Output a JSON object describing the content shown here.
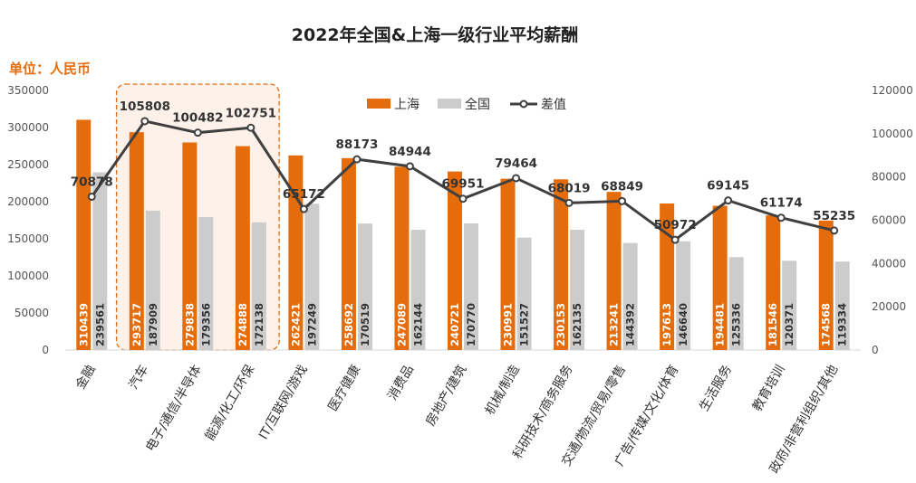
{
  "chart_data": {
    "type": "bar",
    "title": "2022年全国&上海一级行业平均薪酬",
    "unit_label": "单位：人民币",
    "categories": [
      "金融",
      "汽车",
      "电子/通信/半导体",
      "能源/化工/环保",
      "IT/互联网/游戏",
      "医疗健康",
      "消费品",
      "房地产/建筑",
      "机械/制造",
      "科研技术/商务服务",
      "交通/物流/贸易/零售",
      "广告/传媒/文化/体育",
      "生活服务",
      "教育培训",
      "政府/非营利组织/其他"
    ],
    "series": [
      {
        "name": "上海",
        "type": "bar",
        "axis": "left",
        "color": "#e46c0a",
        "values": [
          310439,
          293717,
          279838,
          274888,
          262421,
          258692,
          247089,
          240721,
          230991,
          230153,
          213241,
          197613,
          194481,
          181546,
          174568
        ],
        "labels": [
          "310439",
          "293717",
          "279838",
          "274888",
          "262421",
          "258692",
          "247089",
          "240721",
          "230991",
          "230153",
          "213241",
          "197613",
          "194481",
          "181546",
          "174568"
        ]
      },
      {
        "name": "全国",
        "type": "bar",
        "axis": "left",
        "color": "#cccccc",
        "values": [
          239561,
          187909,
          179356,
          172138,
          197249,
          170519,
          162144,
          170770,
          151527,
          162135,
          144392,
          146640,
          125336,
          120371,
          119334
        ],
        "labels": [
          "239561",
          "187909",
          "179356",
          "172138",
          "197249",
          "170519",
          "162144",
          "170770",
          "151527",
          "162135",
          "144392",
          "146640",
          "125336",
          "120371",
          "119334"
        ]
      },
      {
        "name": "差值",
        "type": "line",
        "axis": "right",
        "color": "#404040",
        "values": [
          70878,
          105808,
          100482,
          102751,
          65172,
          88173,
          84944,
          69951,
          79464,
          68019,
          68849,
          50972,
          69145,
          61174,
          55235
        ],
        "labels": [
          "70878",
          "105808",
          "100482",
          "102751",
          "65172",
          "88173",
          "84944",
          "69951",
          "79464",
          "68019",
          "68849",
          "50972",
          "69145",
          "61174",
          "55235"
        ]
      }
    ],
    "left_axis": {
      "min": 0,
      "max": 350000,
      "step": 50000,
      "tick_labels": [
        "0",
        "50000",
        "100000",
        "150000",
        "200000",
        "250000",
        "300000",
        "350000"
      ]
    },
    "right_axis": {
      "min": 0,
      "max": 120000,
      "step": 20000,
      "tick_labels": [
        "0",
        "20000",
        "40000",
        "60000",
        "80000",
        "100000",
        "120000"
      ]
    },
    "grid": false,
    "legend_position": "top-center",
    "highlight": {
      "style": "dashed-box",
      "color": "#e46c0a",
      "categories": [
        "汽车",
        "电子/通信/半导体",
        "能源/化工/环保"
      ]
    }
  }
}
